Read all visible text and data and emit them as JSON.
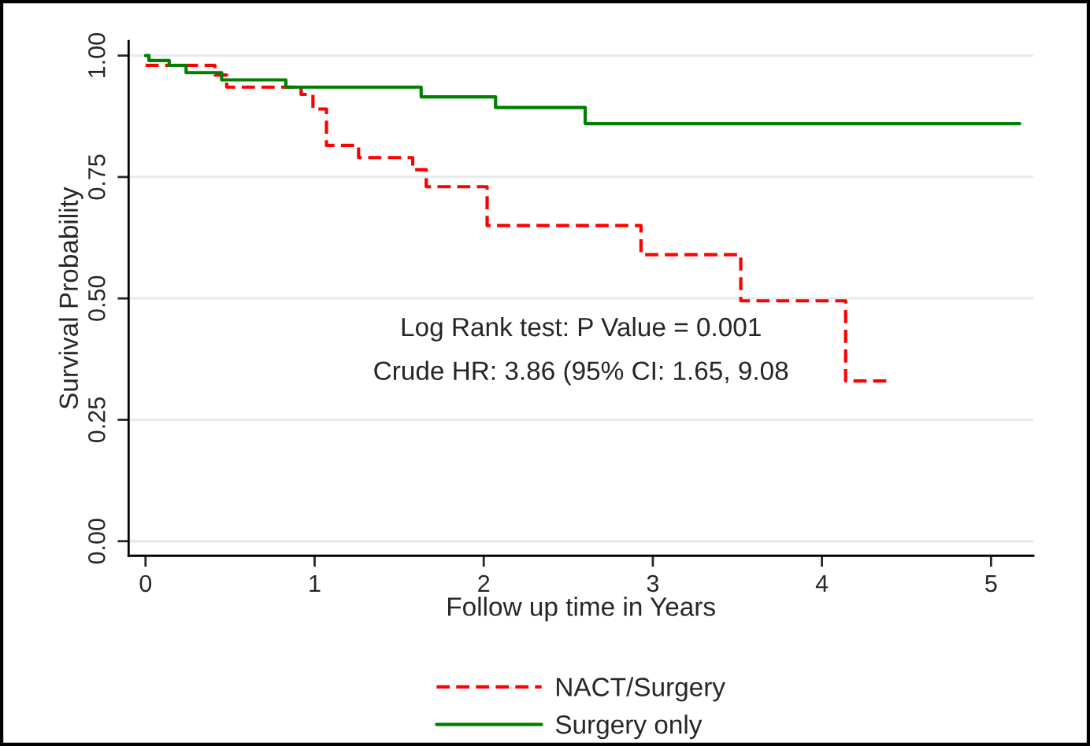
{
  "chart_data": {
    "type": "step",
    "xlabel": "Follow up time in Years",
    "ylabel": "Survival Probability",
    "annotations": [
      "Log Rank test: P Value = 0.001",
      "Crude HR: 3.86 (95% CI: 1.65, 9.08"
    ],
    "series": [
      {
        "name": "NACT/Surgery",
        "color": "#ff0000",
        "line_style": "dashed",
        "x": [
          0,
          0.41,
          0.48,
          0.92,
          0.99,
          1.07,
          1.26,
          1.58,
          1.66,
          2.02,
          2.93,
          3.52,
          4.14,
          4.4
        ],
        "values": [
          0.98,
          0.96,
          0.935,
          0.92,
          0.89,
          0.815,
          0.79,
          0.765,
          0.73,
          0.65,
          0.59,
          0.495,
          0.33,
          0.33
        ]
      },
      {
        "name": "Surgery only",
        "color": "#008000",
        "line_style": "solid",
        "x": [
          0,
          0.02,
          0.14,
          0.24,
          0.45,
          0.83,
          1.63,
          2.07,
          2.6,
          5.17
        ],
        "values": [
          1.0,
          0.99,
          0.98,
          0.965,
          0.95,
          0.935,
          0.915,
          0.893,
          0.86,
          0.86
        ]
      }
    ],
    "xlim": [
      -0.1,
      5.25
    ],
    "xticks": [
      0,
      1,
      2,
      3,
      4,
      5
    ],
    "ylim": [
      -0.03,
      1.03
    ],
    "yticks": [
      {
        "value": 0,
        "label": "0.00"
      },
      {
        "value": 0.25,
        "label": "0.25"
      },
      {
        "value": 0.5,
        "label": "0.50"
      },
      {
        "value": 0.75,
        "label": "0.75"
      },
      {
        "value": 1,
        "label": "1.00"
      }
    ],
    "grid": "y",
    "legend": "bottom"
  }
}
